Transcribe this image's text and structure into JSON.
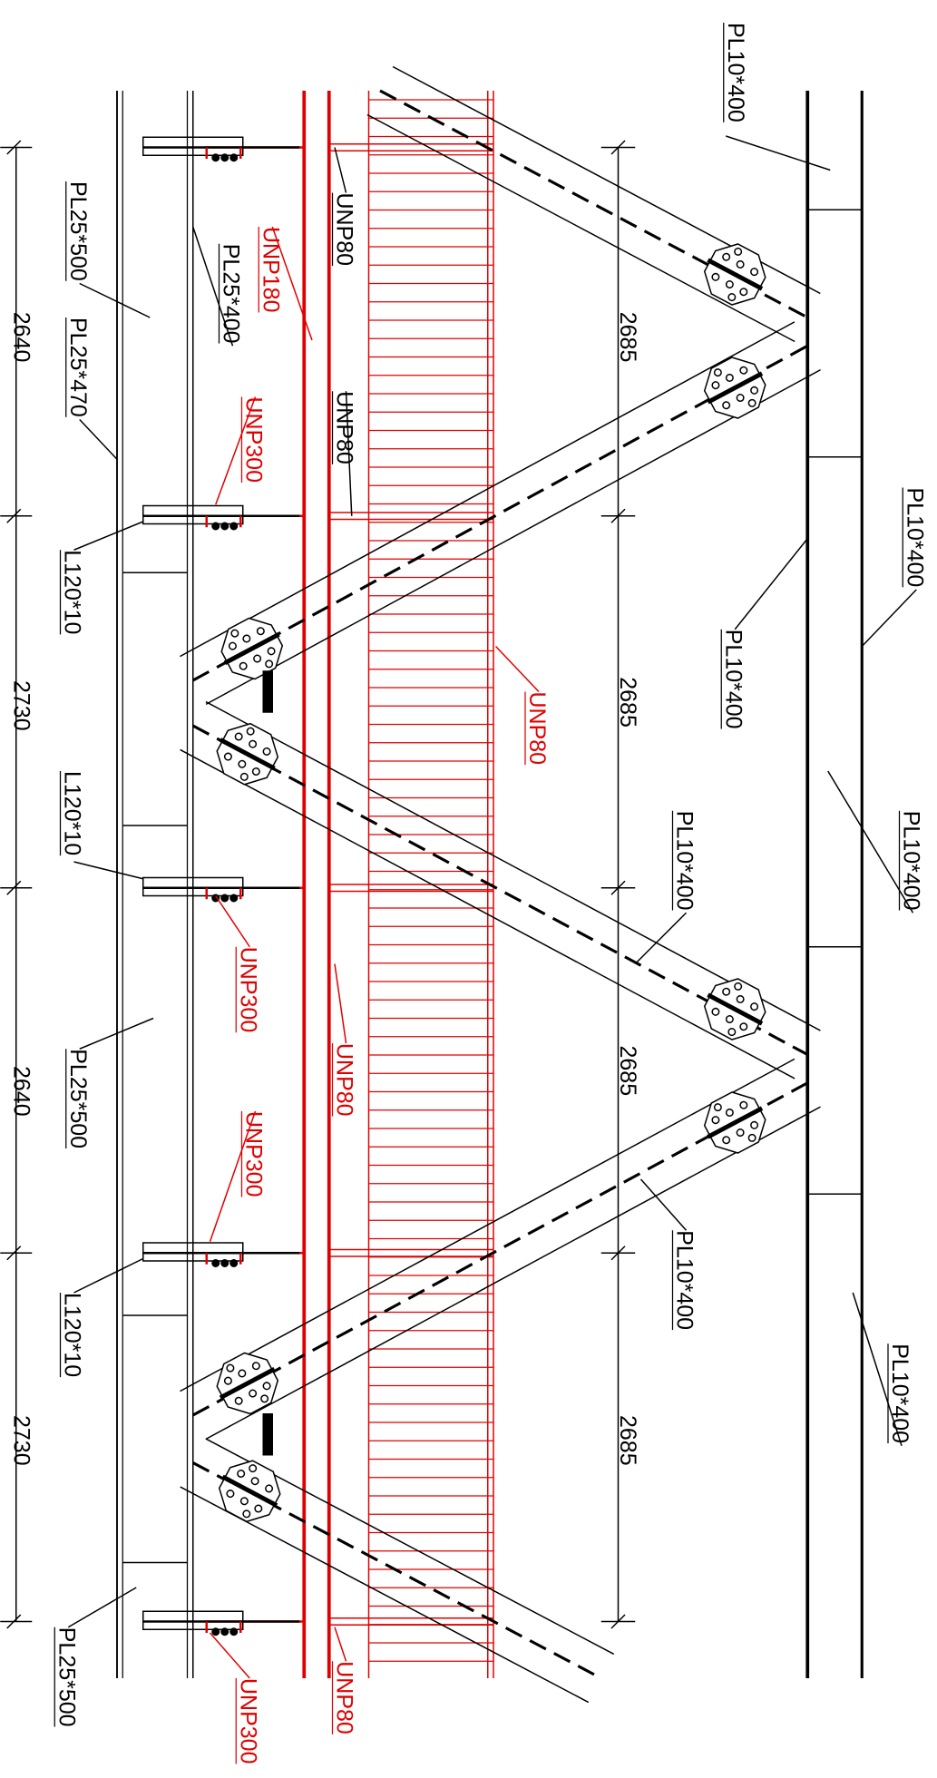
{
  "labels_black": [
    "PL10*400",
    "PL10*400",
    "PL10*400",
    "PL10*400",
    "PL10*400",
    "PL10*400",
    "PL10*400",
    "PL25*500",
    "PL25*400",
    "PL25*470",
    "L120*10",
    "L120*10",
    "PL25*500",
    "L120*10",
    "PL25*500",
    "UNP80",
    "UNP80"
  ],
  "labels_red": [
    "UNP180",
    "UNP300",
    "UNP80",
    "UNP300",
    "UNP80",
    "UNP300",
    "UNP300",
    "UNP80"
  ],
  "dimensions_left": [
    2640,
    2730,
    2640,
    2730
  ],
  "dimensions_right": [
    2685,
    2685,
    2685,
    2685
  ]
}
